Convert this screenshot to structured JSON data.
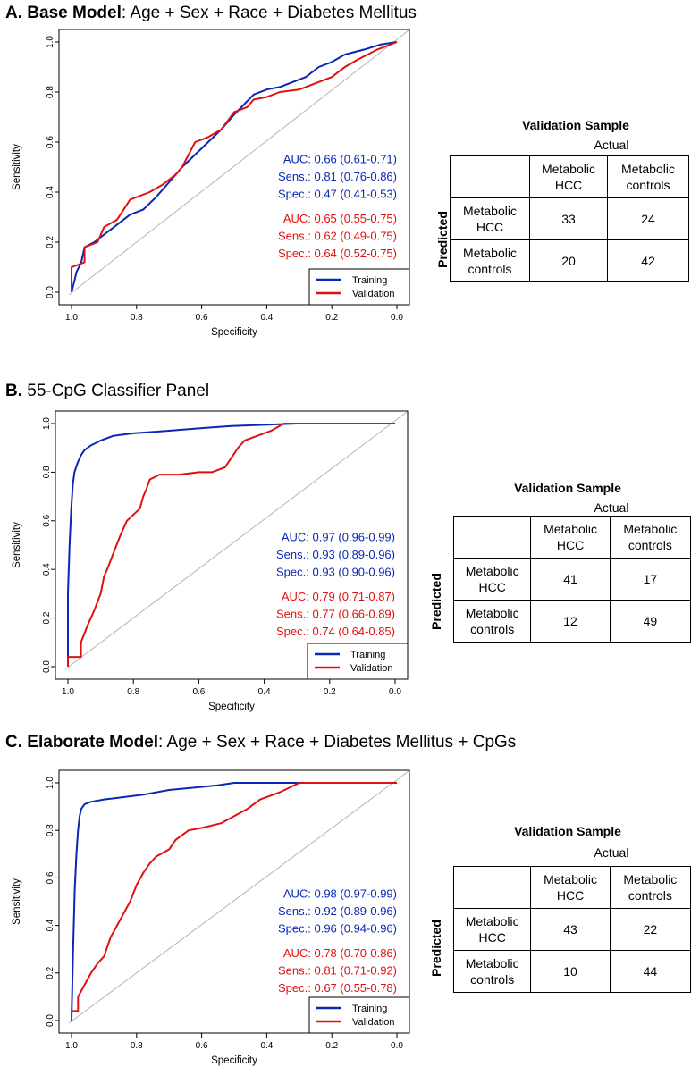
{
  "colors": {
    "training": "#0a28b4",
    "validation": "#e01010",
    "diagonal": "#b4b4b4"
  },
  "chart_data": [
    {
      "type": "line",
      "panel_letter": "A",
      "title_bold": "Base Model",
      "title_rest": ": Age + Sex + Race + Diabetes Mellitus",
      "xlabel": "Specificity",
      "ylabel": "Sensitivity",
      "xlim": [
        1.0,
        0.0
      ],
      "ylim": [
        0.0,
        1.0
      ],
      "x_ticks": [
        "1.0",
        "0.8",
        "0.6",
        "0.4",
        "0.2",
        "0.0"
      ],
      "y_ticks": [
        "0.0",
        "0.2",
        "0.4",
        "0.6",
        "0.8",
        "1.0"
      ],
      "legend": [
        "Training",
        "Validation"
      ],
      "series": [
        {
          "name": "Training",
          "points": [
            [
              1,
              0
            ],
            [
              0.99,
              0.05
            ],
            [
              0.985,
              0.08
            ],
            [
              0.97,
              0.12
            ],
            [
              0.96,
              0.18
            ],
            [
              0.93,
              0.2
            ],
            [
              0.9,
              0.23
            ],
            [
              0.86,
              0.27
            ],
            [
              0.82,
              0.31
            ],
            [
              0.78,
              0.33
            ],
            [
              0.74,
              0.38
            ],
            [
              0.7,
              0.44
            ],
            [
              0.66,
              0.5
            ],
            [
              0.62,
              0.55
            ],
            [
              0.58,
              0.6
            ],
            [
              0.54,
              0.65
            ],
            [
              0.5,
              0.71
            ],
            [
              0.47,
              0.75
            ],
            [
              0.44,
              0.79
            ],
            [
              0.4,
              0.81
            ],
            [
              0.36,
              0.82
            ],
            [
              0.32,
              0.84
            ],
            [
              0.28,
              0.86
            ],
            [
              0.24,
              0.9
            ],
            [
              0.2,
              0.92
            ],
            [
              0.16,
              0.95
            ],
            [
              0.1,
              0.97
            ],
            [
              0.05,
              0.99
            ],
            [
              0,
              1
            ]
          ]
        },
        {
          "name": "Validation",
          "points": [
            [
              1,
              0
            ],
            [
              1,
              0.1
            ],
            [
              0.96,
              0.12
            ],
            [
              0.96,
              0.18
            ],
            [
              0.92,
              0.2
            ],
            [
              0.9,
              0.26
            ],
            [
              0.86,
              0.29
            ],
            [
              0.82,
              0.37
            ],
            [
              0.76,
              0.4
            ],
            [
              0.72,
              0.43
            ],
            [
              0.68,
              0.47
            ],
            [
              0.66,
              0.5
            ],
            [
              0.64,
              0.55
            ],
            [
              0.62,
              0.6
            ],
            [
              0.58,
              0.62
            ],
            [
              0.54,
              0.65
            ],
            [
              0.5,
              0.72
            ],
            [
              0.46,
              0.74
            ],
            [
              0.44,
              0.77
            ],
            [
              0.4,
              0.78
            ],
            [
              0.36,
              0.8
            ],
            [
              0.3,
              0.81
            ],
            [
              0.26,
              0.83
            ],
            [
              0.2,
              0.86
            ],
            [
              0.16,
              0.9
            ],
            [
              0.12,
              0.93
            ],
            [
              0.06,
              0.97
            ],
            [
              0,
              1
            ]
          ]
        }
      ],
      "stats_training": [
        "AUC: 0.66 (0.61-0.71)",
        "Sens.: 0.81 (0.76-0.86)",
        "Spec.: 0.47 (0.41-0.53)"
      ],
      "stats_validation": [
        "AUC: 0.65 (0.55-0.75)",
        "Sens.: 0.62 (0.49-0.75)",
        "Spec.: 0.64 (0.52-0.75)"
      ]
    },
    {
      "type": "line",
      "panel_letter": "B",
      "title_bold": "",
      "title_rest": " 55-CpG Classifier Panel",
      "xlabel": "Specificity",
      "ylabel": "Sensitivity",
      "xlim": [
        1.0,
        0.0
      ],
      "ylim": [
        0.0,
        1.0
      ],
      "x_ticks": [
        "1.0",
        "0.8",
        "0.6",
        "0.4",
        "0.2",
        "0.0"
      ],
      "y_ticks": [
        "0.0",
        "0.2",
        "0.4",
        "0.6",
        "0.8",
        "1.0"
      ],
      "legend": [
        "Training",
        "Validation"
      ],
      "series": [
        {
          "name": "Training",
          "points": [
            [
              1,
              0
            ],
            [
              1,
              0.3
            ],
            [
              0.995,
              0.5
            ],
            [
              0.99,
              0.65
            ],
            [
              0.985,
              0.75
            ],
            [
              0.98,
              0.8
            ],
            [
              0.97,
              0.84
            ],
            [
              0.96,
              0.87
            ],
            [
              0.95,
              0.89
            ],
            [
              0.93,
              0.91
            ],
            [
              0.9,
              0.93
            ],
            [
              0.86,
              0.95
            ],
            [
              0.8,
              0.96
            ],
            [
              0.7,
              0.97
            ],
            [
              0.6,
              0.98
            ],
            [
              0.5,
              0.99
            ],
            [
              0.4,
              0.995
            ],
            [
              0.3,
              1
            ],
            [
              0,
              1
            ]
          ]
        },
        {
          "name": "Validation",
          "points": [
            [
              1,
              0
            ],
            [
              1,
              0.04
            ],
            [
              0.96,
              0.04
            ],
            [
              0.96,
              0.1
            ],
            [
              0.94,
              0.17
            ],
            [
              0.92,
              0.23
            ],
            [
              0.9,
              0.3
            ],
            [
              0.89,
              0.37
            ],
            [
              0.88,
              0.4
            ],
            [
              0.86,
              0.47
            ],
            [
              0.84,
              0.54
            ],
            [
              0.82,
              0.6
            ],
            [
              0.78,
              0.65
            ],
            [
              0.77,
              0.7
            ],
            [
              0.76,
              0.73
            ],
            [
              0.75,
              0.77
            ],
            [
              0.72,
              0.79
            ],
            [
              0.66,
              0.79
            ],
            [
              0.6,
              0.8
            ],
            [
              0.56,
              0.8
            ],
            [
              0.52,
              0.82
            ],
            [
              0.5,
              0.86
            ],
            [
              0.48,
              0.9
            ],
            [
              0.46,
              0.93
            ],
            [
              0.42,
              0.95
            ],
            [
              0.38,
              0.97
            ],
            [
              0.34,
              1
            ],
            [
              0,
              1
            ]
          ]
        }
      ],
      "stats_training": [
        "AUC: 0.97 (0.96-0.99)",
        "Sens.: 0.93 (0.89-0.96)",
        "Spec.: 0.93 (0.90-0.96)"
      ],
      "stats_validation": [
        "AUC: 0.79 (0.71-0.87)",
        "Sens.: 0.77 (0.66-0.89)",
        "Spec.: 0.74 (0.64-0.85)"
      ]
    },
    {
      "type": "line",
      "panel_letter": "C",
      "title_bold": "Elaborate Model",
      "title_rest": ": Age + Sex + Race + Diabetes Mellitus + CpGs",
      "xlabel": "Specificity",
      "ylabel": "Sensitivity",
      "xlim": [
        1.0,
        0.0
      ],
      "ylim": [
        0.0,
        1.0
      ],
      "x_ticks": [
        "1.0",
        "0.8",
        "0.6",
        "0.4",
        "0.2",
        "0.0"
      ],
      "y_ticks": [
        "0.0",
        "0.2",
        "0.4",
        "0.6",
        "0.8",
        "1.0"
      ],
      "legend": [
        "Training",
        "Validation"
      ],
      "series": [
        {
          "name": "Training",
          "points": [
            [
              1,
              0
            ],
            [
              0.995,
              0.3
            ],
            [
              0.99,
              0.55
            ],
            [
              0.985,
              0.7
            ],
            [
              0.98,
              0.8
            ],
            [
              0.975,
              0.86
            ],
            [
              0.97,
              0.89
            ],
            [
              0.96,
              0.91
            ],
            [
              0.94,
              0.92
            ],
            [
              0.9,
              0.93
            ],
            [
              0.84,
              0.94
            ],
            [
              0.78,
              0.95
            ],
            [
              0.7,
              0.97
            ],
            [
              0.62,
              0.98
            ],
            [
              0.55,
              0.99
            ],
            [
              0.5,
              1
            ],
            [
              0,
              1
            ]
          ]
        },
        {
          "name": "Validation",
          "points": [
            [
              1,
              0
            ],
            [
              1,
              0.04
            ],
            [
              0.98,
              0.04
            ],
            [
              0.98,
              0.1
            ],
            [
              0.96,
              0.15
            ],
            [
              0.94,
              0.2
            ],
            [
              0.92,
              0.24
            ],
            [
              0.9,
              0.27
            ],
            [
              0.88,
              0.35
            ],
            [
              0.86,
              0.4
            ],
            [
              0.84,
              0.45
            ],
            [
              0.82,
              0.5
            ],
            [
              0.8,
              0.57
            ],
            [
              0.78,
              0.62
            ],
            [
              0.76,
              0.66
            ],
            [
              0.74,
              0.69
            ],
            [
              0.7,
              0.72
            ],
            [
              0.68,
              0.76
            ],
            [
              0.64,
              0.8
            ],
            [
              0.6,
              0.81
            ],
            [
              0.54,
              0.83
            ],
            [
              0.5,
              0.86
            ],
            [
              0.46,
              0.89
            ],
            [
              0.42,
              0.93
            ],
            [
              0.36,
              0.96
            ],
            [
              0.3,
              1
            ],
            [
              0,
              1
            ]
          ]
        }
      ],
      "stats_training": [
        "AUC: 0.98 (0.97-0.99)",
        "Sens.: 0.92 (0.89-0.96)",
        "Spec.: 0.96 (0.94-0.96)"
      ],
      "stats_validation": [
        "AUC: 0.78 (0.70-0.86)",
        "Sens.: 0.81 (0.71-0.92)",
        "Spec.: 0.67 (0.55-0.78)"
      ]
    }
  ],
  "tables": [
    {
      "title": "Validation Sample",
      "actual": "Actual",
      "predicted": "Predicted",
      "col_headers": [
        [
          "Metabolic",
          "HCC"
        ],
        [
          "Metabolic",
          "controls"
        ]
      ],
      "rows": [
        {
          "label": [
            "Metabolic",
            "HCC"
          ],
          "values": [
            "33",
            "24"
          ]
        },
        {
          "label": [
            "Metabolic",
            "controls"
          ],
          "values": [
            "20",
            "42"
          ]
        }
      ]
    },
    {
      "title": "Validation Sample",
      "actual": "Actual",
      "predicted": "Predicted",
      "col_headers": [
        [
          "Metabolic",
          "HCC"
        ],
        [
          "Metabolic",
          "controls"
        ]
      ],
      "rows": [
        {
          "label": [
            "Metabolic",
            "HCC"
          ],
          "values": [
            "41",
            "17"
          ]
        },
        {
          "label": [
            "Metabolic",
            "controls"
          ],
          "values": [
            "12",
            "49"
          ]
        }
      ]
    },
    {
      "title": "Validation Sample",
      "actual": "Actual",
      "predicted": "Predicted",
      "col_headers": [
        [
          "Metabolic",
          "HCC"
        ],
        [
          "Metabolic",
          "controls"
        ]
      ],
      "rows": [
        {
          "label": [
            "Metabolic",
            "HCC"
          ],
          "values": [
            "43",
            "22"
          ]
        },
        {
          "label": [
            "Metabolic",
            "controls"
          ],
          "values": [
            "10",
            "44"
          ]
        }
      ]
    }
  ]
}
